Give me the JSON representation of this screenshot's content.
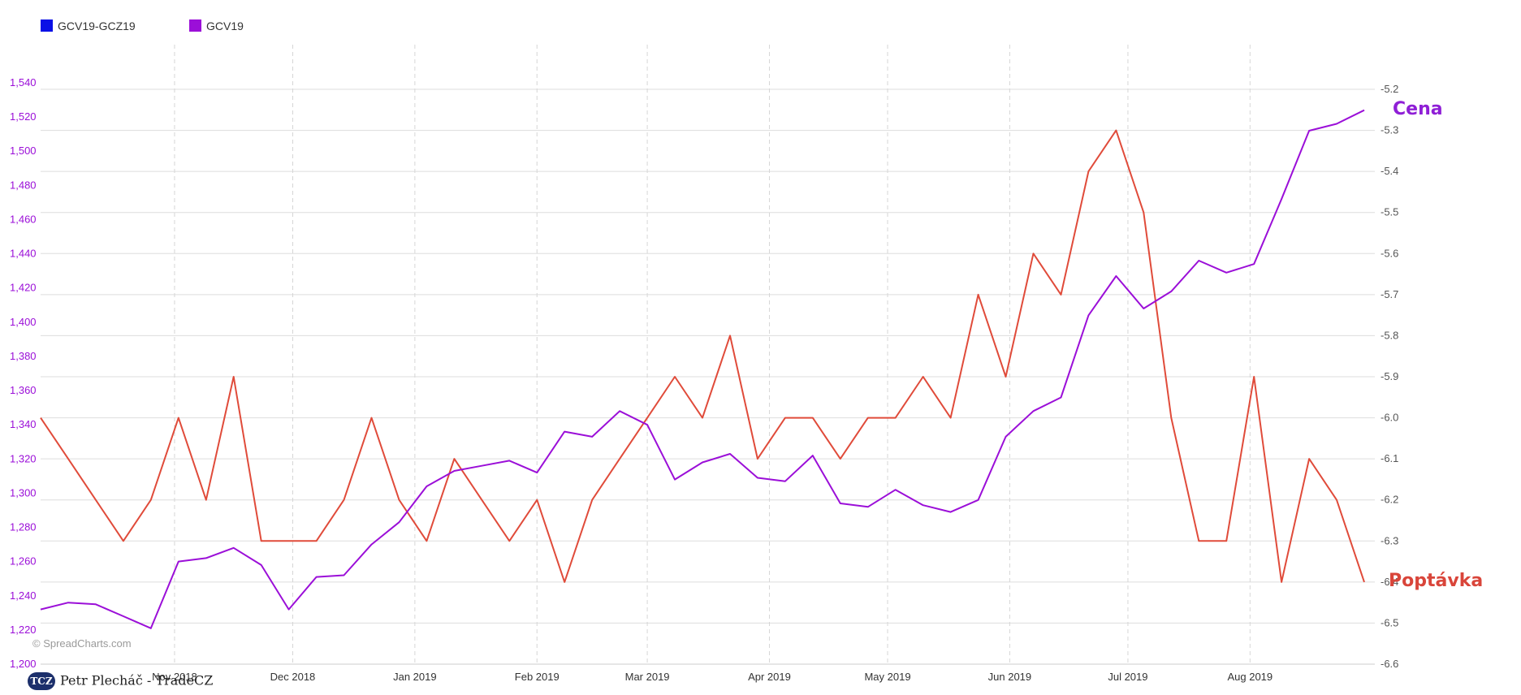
{
  "legend": [
    {
      "label": "GCV19-GCZ19",
      "color": "#0a10e6"
    },
    {
      "label": "GCV19",
      "color": "#9b0fd8"
    }
  ],
  "annotations": {
    "cena": {
      "text": "Cena",
      "color": "#8f1fd6"
    },
    "poptavka": {
      "text": "Poptávka",
      "color": "#d9453a"
    }
  },
  "watermark": "© SpreadCharts.com",
  "credit": {
    "logo": "TCZ",
    "text": "Petr Plecháč - TradeCZ"
  },
  "chart_data": {
    "type": "line",
    "x_range": [
      "2018-09-28",
      "2019-08-30"
    ],
    "x_ticks": [
      "Nov 2018",
      "Dec 2018",
      "Jan 2019",
      "Feb 2019",
      "Mar 2019",
      "Apr 2019",
      "May 2019",
      "Jun 2019",
      "Jul 2019",
      "Aug 2019"
    ],
    "left_axis": {
      "min": 1200,
      "max": 1540,
      "step": 20,
      "tick_labels": [
        "1,200",
        "1,220",
        "1,240",
        "1,260",
        "1,280",
        "1,300",
        "1,320",
        "1,340",
        "1,360",
        "1,380",
        "1,400",
        "1,420",
        "1,440",
        "1,460",
        "1,480",
        "1,500",
        "1,520",
        "1,540"
      ],
      "color": "#9b0fd8"
    },
    "right_axis": {
      "min": -6.6,
      "max": -5.2,
      "step": 0.1,
      "tick_labels": [
        "-6.6",
        "-6.5",
        "-6.4",
        "-6.3",
        "-6.2",
        "-6.1",
        "-6.0",
        "-5.9",
        "-5.8",
        "-5.7",
        "-5.6",
        "-5.5",
        "-5.4",
        "-5.3",
        "-5.2"
      ],
      "color": "#555555"
    },
    "grid": true,
    "legend_position": "top-left",
    "series": [
      {
        "name": "GCV19",
        "axis": "left",
        "color": "#9b0fd8",
        "x": [
          "2018-09-28",
          "2018-10-05",
          "2018-10-12",
          "2018-10-19",
          "2018-10-26",
          "2018-11-02",
          "2018-11-09",
          "2018-11-16",
          "2018-11-23",
          "2018-11-30",
          "2018-12-07",
          "2018-12-14",
          "2018-12-21",
          "2018-12-28",
          "2019-01-04",
          "2019-01-11",
          "2019-01-18",
          "2019-01-25",
          "2019-02-01",
          "2019-02-08",
          "2019-02-15",
          "2019-02-22",
          "2019-03-01",
          "2019-03-08",
          "2019-03-15",
          "2019-03-22",
          "2019-03-29",
          "2019-04-05",
          "2019-04-12",
          "2019-04-19",
          "2019-04-26",
          "2019-05-03",
          "2019-05-10",
          "2019-05-17",
          "2019-05-24",
          "2019-05-31",
          "2019-06-07",
          "2019-06-14",
          "2019-06-21",
          "2019-06-28",
          "2019-07-05",
          "2019-07-12",
          "2019-07-19",
          "2019-07-26",
          "2019-08-02",
          "2019-08-09",
          "2019-08-16",
          "2019-08-23",
          "2019-08-30"
        ],
        "y": [
          1232,
          1236,
          1235,
          1228,
          1221,
          1260,
          1262,
          1268,
          1258,
          1232,
          1251,
          1252,
          1270,
          1283,
          1304,
          1313,
          1316,
          1319,
          1312,
          1336,
          1333,
          1348,
          1340,
          1308,
          1318,
          1323,
          1309,
          1307,
          1322,
          1294,
          1292,
          1302,
          1293,
          1289,
          1296,
          1333,
          1348,
          1356,
          1404,
          1427,
          1408,
          1418,
          1436,
          1429,
          1434,
          1472,
          1512,
          1516,
          1524
        ]
      },
      {
        "name": "GCV19-GCZ19",
        "axis": "right",
        "color": "#e04b3a",
        "x": [
          "2018-09-28",
          "2018-10-05",
          "2018-10-12",
          "2018-10-19",
          "2018-10-26",
          "2018-11-02",
          "2018-11-09",
          "2018-11-16",
          "2018-11-23",
          "2018-11-30",
          "2018-12-07",
          "2018-12-14",
          "2018-12-21",
          "2018-12-28",
          "2019-01-04",
          "2019-01-11",
          "2019-01-18",
          "2019-01-25",
          "2019-02-01",
          "2019-02-08",
          "2019-02-15",
          "2019-02-22",
          "2019-03-01",
          "2019-03-08",
          "2019-03-15",
          "2019-03-22",
          "2019-03-29",
          "2019-04-05",
          "2019-04-12",
          "2019-04-19",
          "2019-04-26",
          "2019-05-03",
          "2019-05-10",
          "2019-05-17",
          "2019-05-24",
          "2019-05-31",
          "2019-06-07",
          "2019-06-14",
          "2019-06-21",
          "2019-06-28",
          "2019-07-05",
          "2019-07-12",
          "2019-07-19",
          "2019-07-26",
          "2019-08-02",
          "2019-08-09",
          "2019-08-16",
          "2019-08-23",
          "2019-08-30"
        ],
        "y": [
          -6.0,
          -6.1,
          -6.2,
          -6.3,
          -6.2,
          -6.0,
          -6.2,
          -5.9,
          -6.3,
          -6.3,
          -6.3,
          -6.2,
          -6.0,
          -6.2,
          -6.3,
          -6.1,
          -6.2,
          -6.3,
          -6.2,
          -6.4,
          -6.2,
          -6.1,
          -6.0,
          -5.9,
          -6.0,
          -5.8,
          -6.1,
          -6.0,
          -6.0,
          -6.1,
          -6.0,
          -6.0,
          -5.9,
          -6.0,
          -5.7,
          -5.9,
          -5.6,
          -5.7,
          -5.4,
          -5.3,
          -5.5,
          -6.0,
          -6.3,
          -6.3,
          -5.9,
          -6.4,
          -6.1,
          -6.2,
          -6.4
        ]
      }
    ]
  }
}
